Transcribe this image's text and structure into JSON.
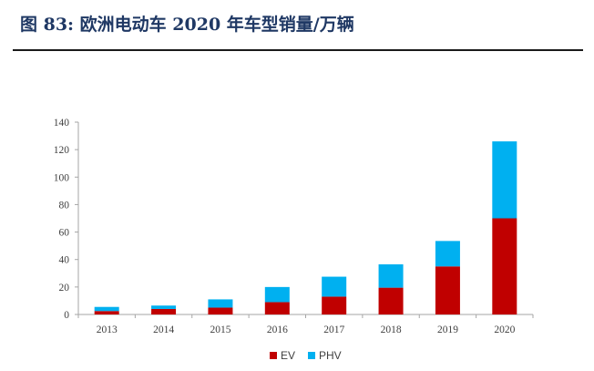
{
  "header": {
    "figure_title": "图 83:  欧洲电动车 2020 年车型销量/万辆"
  },
  "colors": {
    "EV": "#c00000",
    "PHV": "#00b0f0",
    "axis": "#a6a6a6",
    "title": "#1f3864"
  },
  "chart_data": {
    "type": "bar",
    "stacked": true,
    "title": "",
    "xlabel": "",
    "ylabel": "",
    "categories": [
      "2013",
      "2014",
      "2015",
      "2016",
      "2017",
      "2018",
      "2019",
      "2020"
    ],
    "series": [
      {
        "name": "EV",
        "color": "#c00000",
        "values": [
          2.5,
          4,
          5,
          9,
          13,
          19.5,
          35,
          70
        ]
      },
      {
        "name": "PHV",
        "color": "#00b0f0",
        "values": [
          3,
          2.5,
          6,
          11,
          14.5,
          17,
          18.5,
          56
        ]
      }
    ],
    "ylim": [
      0,
      140
    ],
    "yticks": [
      0,
      20,
      40,
      60,
      80,
      100,
      120,
      140
    ],
    "grid": false,
    "legend": "bottom-center"
  }
}
